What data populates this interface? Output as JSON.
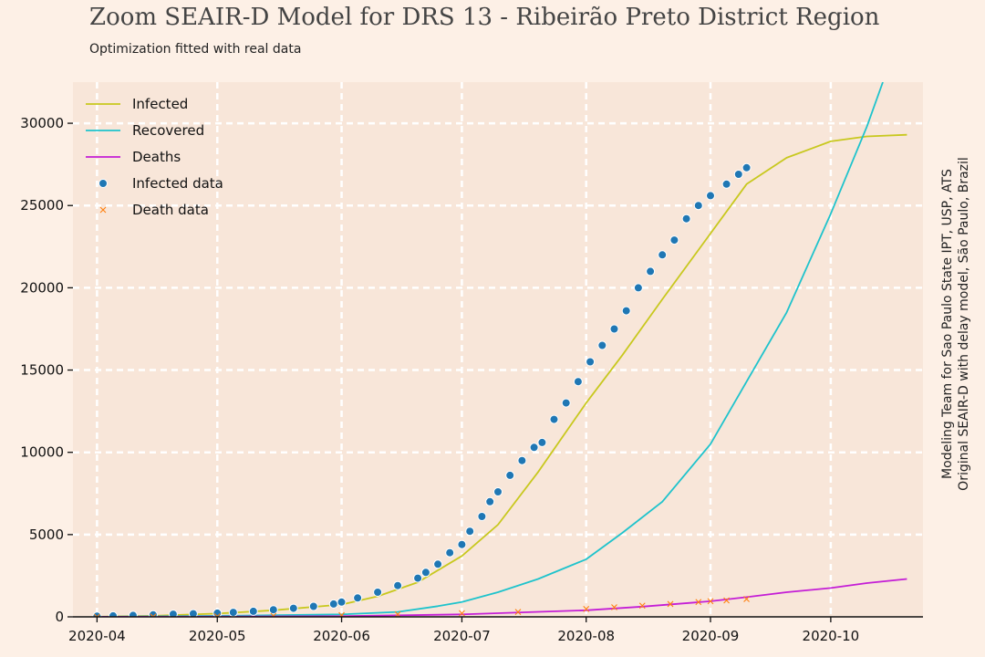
{
  "header": {
    "title": "Zoom SEAIR-D Model for DRS 13 - Ribeirão Preto District Region",
    "subtitle": "Optimization fitted with real data"
  },
  "credit": {
    "line1": "Modeling Team for Sao Paulo State IPT, USP, ATS",
    "line2": "Original SEAIR-D with delay model, São Paulo, Brazil"
  },
  "colors": {
    "background": "#fdf0e6",
    "plot_area": "#f8e6d9",
    "grid": "#ffffff",
    "infected": "#c8c81e",
    "recovered": "#1ec3cc",
    "deaths": "#c41ed6",
    "infected_data": "#1f77b4",
    "death_data": "#ff7f0e"
  },
  "chart_data": {
    "type": "line",
    "x_axis": {
      "type": "date",
      "range": [
        "2020-03-26",
        "2020-10-24"
      ],
      "ticks": [
        "2020-04",
        "2020-05",
        "2020-06",
        "2020-07",
        "2020-08",
        "2020-09",
        "2020-10"
      ]
    },
    "y_axis": {
      "range": [
        0,
        32500
      ],
      "ticks": [
        0,
        5000,
        10000,
        15000,
        20000,
        25000,
        30000
      ]
    },
    "grid": true,
    "legend_position": "top-left",
    "series": [
      {
        "name": "Infected",
        "kind": "line",
        "points": [
          [
            "2020-03-31",
            0
          ],
          [
            "2020-04-15",
            60
          ],
          [
            "2020-05-01",
            200
          ],
          [
            "2020-05-15",
            400
          ],
          [
            "2020-06-01",
            750
          ],
          [
            "2020-06-10",
            1250
          ],
          [
            "2020-06-20",
            2100
          ],
          [
            "2020-07-01",
            3700
          ],
          [
            "2020-07-10",
            5600
          ],
          [
            "2020-07-20",
            8800
          ],
          [
            "2020-08-01",
            13000
          ],
          [
            "2020-08-10",
            15900
          ],
          [
            "2020-08-20",
            19300
          ],
          [
            "2020-09-01",
            23300
          ],
          [
            "2020-09-10",
            26300
          ],
          [
            "2020-09-20",
            27900
          ],
          [
            "2020-10-01",
            28900
          ],
          [
            "2020-10-10",
            29200
          ],
          [
            "2020-10-20",
            29300
          ]
        ]
      },
      {
        "name": "Recovered",
        "kind": "line",
        "points": [
          [
            "2020-03-31",
            0
          ],
          [
            "2020-05-01",
            60
          ],
          [
            "2020-06-01",
            150
          ],
          [
            "2020-06-15",
            300
          ],
          [
            "2020-06-25",
            650
          ],
          [
            "2020-07-01",
            900
          ],
          [
            "2020-07-10",
            1500
          ],
          [
            "2020-07-20",
            2300
          ],
          [
            "2020-08-01",
            3500
          ],
          [
            "2020-08-10",
            5100
          ],
          [
            "2020-08-20",
            7000
          ],
          [
            "2020-09-01",
            10500
          ],
          [
            "2020-09-10",
            14300
          ],
          [
            "2020-09-20",
            18500
          ],
          [
            "2020-10-01",
            24500
          ],
          [
            "2020-10-10",
            29800
          ],
          [
            "2020-10-14",
            32500
          ]
        ]
      },
      {
        "name": "Deaths",
        "kind": "line",
        "points": [
          [
            "2020-03-31",
            0
          ],
          [
            "2020-06-01",
            40
          ],
          [
            "2020-07-01",
            150
          ],
          [
            "2020-08-01",
            400
          ],
          [
            "2020-08-15",
            620
          ],
          [
            "2020-09-01",
            950
          ],
          [
            "2020-09-10",
            1200
          ],
          [
            "2020-09-20",
            1500
          ],
          [
            "2020-10-01",
            1750
          ],
          [
            "2020-10-10",
            2050
          ],
          [
            "2020-10-20",
            2300
          ]
        ]
      },
      {
        "name": "Infected data",
        "kind": "scatter",
        "marker": "circle",
        "points": [
          [
            "2020-04-01",
            40
          ],
          [
            "2020-04-05",
            60
          ],
          [
            "2020-04-10",
            90
          ],
          [
            "2020-04-15",
            120
          ],
          [
            "2020-04-20",
            160
          ],
          [
            "2020-04-25",
            190
          ],
          [
            "2020-05-01",
            230
          ],
          [
            "2020-05-05",
            270
          ],
          [
            "2020-05-10",
            340
          ],
          [
            "2020-05-15",
            430
          ],
          [
            "2020-05-20",
            520
          ],
          [
            "2020-05-25",
            640
          ],
          [
            "2020-05-30",
            780
          ],
          [
            "2020-06-01",
            900
          ],
          [
            "2020-06-05",
            1150
          ],
          [
            "2020-06-10",
            1500
          ],
          [
            "2020-06-15",
            1900
          ],
          [
            "2020-06-20",
            2350
          ],
          [
            "2020-06-22",
            2700
          ],
          [
            "2020-06-25",
            3200
          ],
          [
            "2020-06-28",
            3900
          ],
          [
            "2020-07-01",
            4400
          ],
          [
            "2020-07-03",
            5200
          ],
          [
            "2020-07-06",
            6100
          ],
          [
            "2020-07-08",
            7000
          ],
          [
            "2020-07-10",
            7600
          ],
          [
            "2020-07-13",
            8600
          ],
          [
            "2020-07-16",
            9500
          ],
          [
            "2020-07-19",
            10300
          ],
          [
            "2020-07-21",
            10600
          ],
          [
            "2020-07-24",
            12000
          ],
          [
            "2020-07-27",
            13000
          ],
          [
            "2020-07-30",
            14300
          ],
          [
            "2020-08-02",
            15500
          ],
          [
            "2020-08-05",
            16500
          ],
          [
            "2020-08-08",
            17500
          ],
          [
            "2020-08-11",
            18600
          ],
          [
            "2020-08-14",
            20000
          ],
          [
            "2020-08-17",
            21000
          ],
          [
            "2020-08-20",
            22000
          ],
          [
            "2020-08-23",
            22900
          ],
          [
            "2020-08-26",
            24200
          ],
          [
            "2020-08-29",
            25000
          ],
          [
            "2020-09-01",
            25600
          ],
          [
            "2020-09-05",
            26300
          ],
          [
            "2020-09-08",
            26900
          ],
          [
            "2020-09-10",
            27300
          ]
        ]
      },
      {
        "name": "Death data",
        "kind": "scatter",
        "marker": "x",
        "points": [
          [
            "2020-04-01",
            2
          ],
          [
            "2020-04-15",
            10
          ],
          [
            "2020-05-01",
            30
          ],
          [
            "2020-05-15",
            60
          ],
          [
            "2020-06-01",
            100
          ],
          [
            "2020-06-15",
            150
          ],
          [
            "2020-07-01",
            220
          ],
          [
            "2020-07-15",
            300
          ],
          [
            "2020-08-01",
            480
          ],
          [
            "2020-08-08",
            580
          ],
          [
            "2020-08-15",
            680
          ],
          [
            "2020-08-22",
            780
          ],
          [
            "2020-08-29",
            900
          ],
          [
            "2020-09-01",
            950
          ],
          [
            "2020-09-05",
            1000
          ],
          [
            "2020-09-10",
            1080
          ]
        ]
      }
    ]
  }
}
